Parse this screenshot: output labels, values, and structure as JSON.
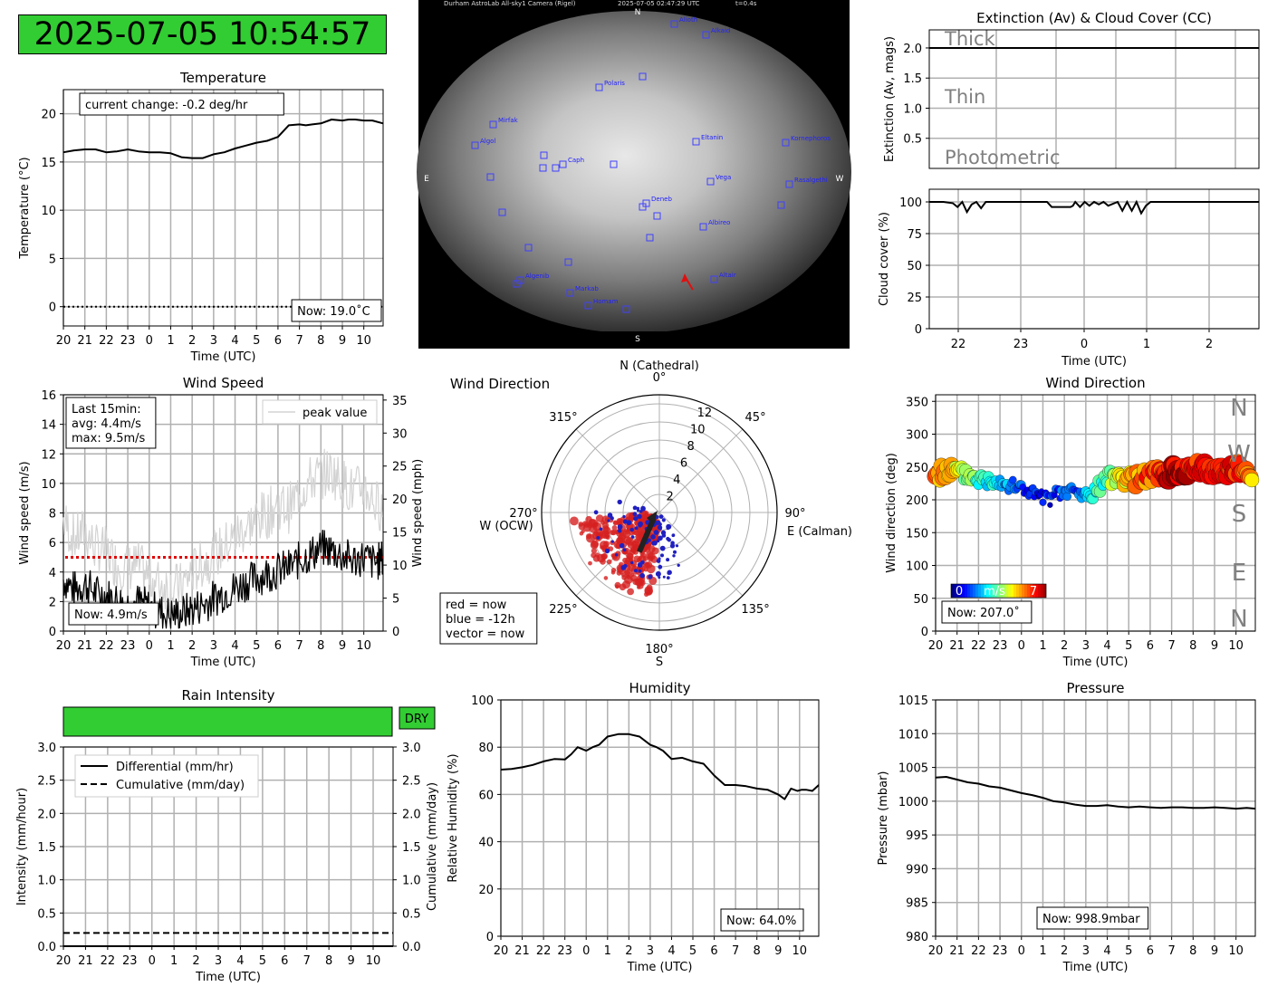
{
  "clock": {
    "text": "2025-07-05 10:54:57",
    "color": "#32cd32"
  },
  "colors": {
    "grid": "#b0b0b0",
    "line": "#000000",
    "peak": "#d3d3d3",
    "red": "#d62728",
    "blue": "#1f1fcc",
    "ok": "#32cd32"
  },
  "charts": {
    "temperature": {
      "type": "line",
      "title": "Temperature",
      "xlabel": "Time (UTC)",
      "ylabel": "Temperature (°C)",
      "xticks": [
        "20",
        "21",
        "22",
        "23",
        "0",
        "1",
        "2",
        "3",
        "4",
        "5",
        "6",
        "7",
        "8",
        "9",
        "10"
      ],
      "yticks": [
        "0",
        "5",
        "10",
        "15",
        "20"
      ],
      "ylim": [
        -2,
        22.5
      ],
      "xlim": [
        0,
        14.9
      ],
      "grid": true,
      "annotation": "current change: -0.2 deg/hr",
      "now": "Now: 19.0˚C",
      "x": [
        0,
        0.5,
        1,
        1.5,
        2,
        2.5,
        3,
        3.5,
        4,
        4.5,
        5,
        5.5,
        6,
        6.5,
        7,
        7.5,
        8,
        8.5,
        9,
        9.5,
        10,
        10.5,
        11,
        11.3,
        11.6,
        12,
        12.5,
        13,
        13.3,
        13.6,
        14,
        14.4,
        14.9
      ],
      "values": [
        16.0,
        16.2,
        16.3,
        16.3,
        16.0,
        16.1,
        16.3,
        16.1,
        16.0,
        16.0,
        15.9,
        15.5,
        15.4,
        15.4,
        15.8,
        16.0,
        16.4,
        16.7,
        17.0,
        17.2,
        17.6,
        18.8,
        18.9,
        18.8,
        18.9,
        19.0,
        19.4,
        19.3,
        19.4,
        19.4,
        19.3,
        19.3,
        19.0
      ],
      "reference": 0
    },
    "sky_camera": {
      "header": "Durham AstroLab All-sky1 Camera (Rigel)",
      "timestamp": "2025-07-05 02:47:29 UTC",
      "exposure": "t=0.4s",
      "cardinal": [
        "N",
        "E",
        "W",
        "S"
      ],
      "stars": [
        "Alioth",
        "Alkaid",
        "Polaris",
        "Mirfak",
        "Algol",
        "Caph",
        "Eltanin",
        "Kornephoros",
        "Rasalgethi",
        "Deneb",
        "Vega",
        "Albireo",
        "Altair",
        "Algenib",
        "Markab",
        "Homam"
      ]
    },
    "extinction": {
      "type": "line",
      "title": "Extinction (Av) & Cloud Cover (CC)",
      "ylabel": "Extinction (Av, mags)",
      "yticks": [
        "0.5",
        "1.0",
        "1.5",
        "2.0"
      ],
      "ylim": [
        0,
        2.3
      ],
      "bands": [
        "Thick",
        "Thin",
        "Photometric"
      ],
      "value": 2.0
    },
    "cloud": {
      "type": "line",
      "xlabel": "Time (UTC)",
      "ylabel": "Cloud cover (%)",
      "xticks": [
        "22",
        "23",
        "0",
        "1",
        "2"
      ],
      "yticks": [
        "0",
        "25",
        "50",
        "75",
        "100"
      ],
      "ylim": [
        0,
        110
      ],
      "x": [
        0,
        0.3,
        0.5,
        0.6,
        0.7,
        0.8,
        0.9,
        1.0,
        1.1,
        1.2,
        1.8,
        1.9,
        2.0,
        2.5,
        2.6,
        2.65,
        2.7,
        2.8,
        2.9,
        3.0,
        3.05,
        3.1,
        3.2,
        3.3,
        3.4,
        3.5,
        3.6,
        3.7,
        3.8,
        4.0,
        4.1,
        4.2,
        4.3,
        4.4,
        4.5,
        4.6,
        4.7,
        4.8,
        5.0,
        6.0,
        7.0
      ],
      "values": [
        100,
        100,
        99,
        96,
        100,
        92,
        98,
        100,
        95,
        100,
        100,
        100,
        100,
        100,
        96,
        96,
        96,
        96,
        96,
        96,
        97,
        100,
        96,
        100,
        97,
        100,
        98,
        100,
        97,
        100,
        93,
        100,
        93,
        100,
        91,
        97,
        100,
        100,
        100,
        100,
        100
      ]
    },
    "wind_speed": {
      "type": "line",
      "title": "Wind Speed",
      "xlabel": "Time (UTC)",
      "ylabel": "Wind speed (m/s)",
      "ylabel_right": "Wind speed (mph)",
      "xticks": [
        "20",
        "21",
        "22",
        "23",
        "0",
        "1",
        "2",
        "3",
        "4",
        "5",
        "6",
        "7",
        "8",
        "9",
        "10"
      ],
      "yticks": [
        "0",
        "2",
        "4",
        "6",
        "8",
        "10",
        "12",
        "14",
        "16"
      ],
      "yticks_right": [
        "0",
        "5",
        "10",
        "15",
        "20",
        "25",
        "30",
        "35"
      ],
      "ylim": [
        0,
        16
      ],
      "legend": "peak value",
      "stats": [
        "Last 15min:",
        "avg: 4.4m/s",
        "max: 9.5m/s"
      ],
      "now": "Now: 4.9m/s",
      "x": [
        0,
        0.5,
        1,
        1.5,
        2,
        2.5,
        3,
        3.5,
        4,
        4.5,
        5,
        5.5,
        6,
        6.5,
        7,
        7.5,
        8,
        8.5,
        9,
        9.5,
        10,
        10.5,
        11,
        11.5,
        12,
        12.5,
        13,
        13.5,
        14,
        14.5,
        14.9
      ],
      "values": [
        3.5,
        2.8,
        3.2,
        2.6,
        2.4,
        2.1,
        1.8,
        2.0,
        1.6,
        1.3,
        1.1,
        1.2,
        1.5,
        1.8,
        2.2,
        2.6,
        2.9,
        3.3,
        3.6,
        3.9,
        4.1,
        4.3,
        4.8,
        5.2,
        5.6,
        5.5,
        5.1,
        4.8,
        5.0,
        4.6,
        4.9
      ],
      "peaks": [
        7.5,
        6.2,
        6.8,
        5.6,
        5.4,
        4.5,
        4.3,
        4.4,
        3.6,
        3.2,
        3.0,
        3.0,
        4.0,
        4.6,
        5.1,
        5.7,
        6.4,
        7.0,
        7.6,
        7.9,
        8.6,
        8.3,
        9.4,
        10.2,
        10.6,
        10.8,
        10.1,
        9.4,
        9.8,
        8.7,
        8.3
      ],
      "threshold": 5
    },
    "wind_polar": {
      "type": "scatter",
      "title": "Wind Direction",
      "north": "N (Cathedral)",
      "south": "S",
      "west": "W (OCW)",
      "east": "E (Calman)",
      "angles": [
        "0°",
        "45°",
        "90°",
        "135°",
        "180°",
        "225°",
        "270°",
        "315°"
      ],
      "rticks": [
        "2",
        "4",
        "6",
        "8",
        "10",
        "12"
      ],
      "rmax": 13,
      "legend": [
        "red = now",
        "blue = -12h",
        "vector = now"
      ],
      "vector": {
        "direction": 207,
        "speed": 4.9
      }
    },
    "wind_direction": {
      "type": "scatter",
      "title": "Wind Direction",
      "xlabel": "Time (UTC)",
      "ylabel": "Wind direction (deg)",
      "xticks": [
        "20",
        "21",
        "22",
        "23",
        "0",
        "1",
        "2",
        "3",
        "4",
        "5",
        "6",
        "7",
        "8",
        "9",
        "10"
      ],
      "yticks": [
        "0",
        "50",
        "100",
        "150",
        "200",
        "250",
        "300",
        "350"
      ],
      "ylim": [
        0,
        360
      ],
      "compass": [
        "N",
        "W",
        "S",
        "E",
        "N"
      ],
      "colorbar": {
        "min": "0",
        "label": "m/s",
        "max": "7"
      },
      "now": "Now: 207.0˚",
      "x": [
        0,
        0.4,
        0.8,
        1.2,
        1.6,
        2.0,
        2.4,
        2.8,
        3.2,
        3.6,
        4.0,
        4.4,
        4.8,
        5.2,
        5.6,
        6.0,
        6.4,
        6.8,
        7.2,
        7.6,
        8.0,
        8.4,
        8.8,
        9.2,
        9.6,
        10.0,
        10.4,
        10.8,
        11.2,
        11.6,
        12.0,
        12.4,
        12.8,
        13.2,
        13.6,
        14.0,
        14.4,
        14.8
      ],
      "values": [
        238,
        243,
        245,
        240,
        236,
        232,
        229,
        233,
        226,
        220,
        218,
        212,
        205,
        200,
        206,
        211,
        214,
        207,
        206,
        219,
        232,
        236,
        233,
        230,
        234,
        237,
        239,
        240,
        243,
        245,
        247,
        248,
        244,
        244,
        247,
        249,
        241,
        226
      ],
      "speeds": [
        5.2,
        5.0,
        4.6,
        3.9,
        3.4,
        3.0,
        2.6,
        2.4,
        2.1,
        1.6,
        1.3,
        1.1,
        0.8,
        0.9,
        1.2,
        1.4,
        1.3,
        1.7,
        2.3,
        2.8,
        3.3,
        3.8,
        4.4,
        4.9,
        5.3,
        5.6,
        5.8,
        6.2,
        6.6,
        6.4,
        6.0,
        5.9,
        6.1,
        6.2,
        6.1,
        6.0,
        5.4,
        4.9
      ]
    },
    "rain": {
      "type": "line",
      "title": "Rain Intensity",
      "status": "DRY",
      "xlabel": "Time (UTC)",
      "ylabel": "Intensity (mm/hour)",
      "ylabel_right": "Cumulative (mm/day)",
      "xticks": [
        "20",
        "21",
        "22",
        "23",
        "0",
        "1",
        "2",
        "3",
        "4",
        "5",
        "6",
        "7",
        "8",
        "9",
        "10"
      ],
      "yticks": [
        "0.0",
        "0.5",
        "1.0",
        "1.5",
        "2.0",
        "2.5",
        "3.0"
      ],
      "ylim": [
        0,
        3
      ],
      "legend": [
        "Differential (mm/hr)",
        "Cumulative (mm/day)"
      ],
      "differential": 0.0,
      "cumulative": 0.2
    },
    "humidity": {
      "type": "line",
      "title": "Humidity",
      "xlabel": "Time (UTC)",
      "ylabel": "Relative Humidity (%)",
      "xticks": [
        "20",
        "21",
        "22",
        "23",
        "0",
        "1",
        "2",
        "3",
        "4",
        "5",
        "6",
        "7",
        "8",
        "9",
        "10"
      ],
      "yticks": [
        "0",
        "20",
        "40",
        "60",
        "80",
        "100"
      ],
      "ylim": [
        0,
        100
      ],
      "now": "Now: 64.0%",
      "x": [
        0,
        0.5,
        1,
        1.5,
        2,
        2.5,
        3,
        3.3,
        3.6,
        4,
        4.3,
        4.6,
        5,
        5.5,
        6,
        6.5,
        7,
        7.3,
        7.6,
        8,
        8.5,
        9,
        9.5,
        10,
        10.5,
        11,
        11.5,
        12,
        12.5,
        13,
        13.3,
        13.6,
        13.9,
        14.1,
        14.3,
        14.6,
        14.9
      ],
      "values": [
        70.5,
        70.8,
        71.5,
        72.5,
        74,
        75,
        74.8,
        77,
        80,
        78.5,
        80,
        81,
        84.5,
        85.5,
        85.5,
        84.5,
        81,
        80,
        78.5,
        75,
        75.5,
        74,
        73,
        68,
        64,
        64,
        63.5,
        62.5,
        62,
        60,
        58,
        62.5,
        61.5,
        62,
        62,
        61.5,
        64
      ]
    },
    "pressure": {
      "type": "line",
      "title": "Pressure",
      "xlabel": "Time (UTC)",
      "ylabel": "Pressure (mbar)",
      "xticks": [
        "20",
        "21",
        "22",
        "23",
        "0",
        "1",
        "2",
        "3",
        "4",
        "5",
        "6",
        "7",
        "8",
        "9",
        "10"
      ],
      "yticks": [
        "980",
        "985",
        "990",
        "995",
        "1000",
        "1005",
        "1010",
        "1015"
      ],
      "ylim": [
        980,
        1015
      ],
      "now": "Now: 998.9mbar",
      "x": [
        0,
        0.5,
        1,
        1.5,
        2,
        2.5,
        3,
        3.5,
        4,
        4.5,
        5,
        5.5,
        6,
        6.5,
        7,
        7.5,
        8,
        8.5,
        9,
        9.5,
        10,
        10.5,
        11,
        11.5,
        12,
        12.5,
        13,
        13.5,
        14,
        14.5,
        14.9
      ],
      "values": [
        1003.5,
        1003.6,
        1003.2,
        1002.8,
        1002.6,
        1002.2,
        1002.0,
        1001.6,
        1001.2,
        1000.9,
        1000.5,
        1000.0,
        999.8,
        999.5,
        999.3,
        999.3,
        999.4,
        999.2,
        999.1,
        999.2,
        999.1,
        999.0,
        999.1,
        999.1,
        999.0,
        999.0,
        999.1,
        999.0,
        998.9,
        999.0,
        998.9
      ]
    }
  }
}
